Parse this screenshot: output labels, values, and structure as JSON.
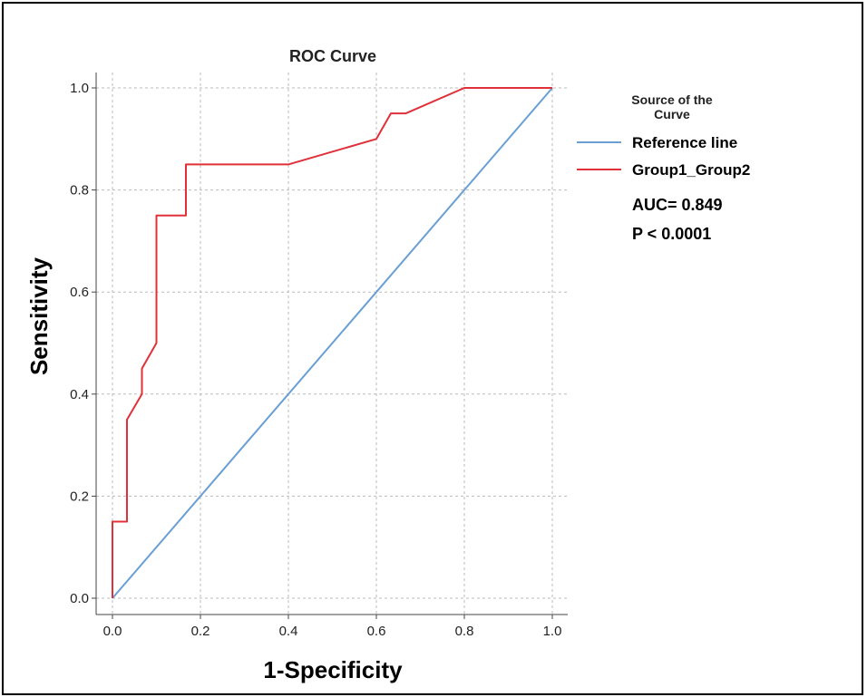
{
  "chart_data": {
    "type": "line",
    "title": "ROC Curve",
    "xlabel": "1-Specificity",
    "ylabel": "Sensitivity",
    "xlim": [
      0,
      1
    ],
    "ylim": [
      0,
      1
    ],
    "xticks": [
      "0.0",
      "0.2",
      "0.4",
      "0.6",
      "0.8",
      "1.0"
    ],
    "yticks": [
      "0.0",
      "0.2",
      "0.4",
      "0.6",
      "0.8",
      "1.0"
    ],
    "grid": true,
    "legend": {
      "title_line1": "Source of the",
      "title_line2": "Curve",
      "placement": "right"
    },
    "series": [
      {
        "name": "Reference line",
        "color": "#6a9fd4",
        "x": [
          0,
          1
        ],
        "y": [
          0,
          1
        ]
      },
      {
        "name": "Group1_Group2",
        "color": "#e0303a",
        "x": [
          0,
          0,
          0.033,
          0.033,
          0.067,
          0.067,
          0.1,
          0.1,
          0.167,
          0.167,
          0.4,
          0.6,
          0.633,
          0.667,
          0.8,
          1.0
        ],
        "y": [
          0,
          0.15,
          0.15,
          0.35,
          0.4,
          0.45,
          0.5,
          0.75,
          0.75,
          0.85,
          0.85,
          0.9,
          0.95,
          0.95,
          1.0,
          1.0
        ]
      }
    ],
    "annotations": [
      "AUC= 0.849",
      "P < 0.0001"
    ]
  }
}
